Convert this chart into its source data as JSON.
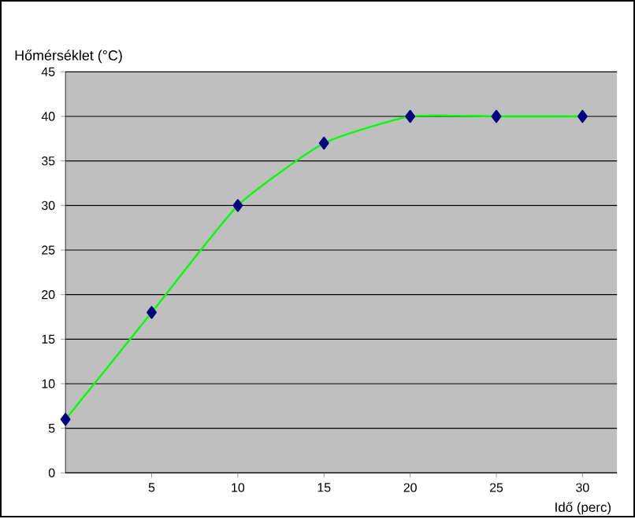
{
  "chart_data": {
    "type": "line",
    "xlabel": "Idő (perc)",
    "ylabel": "Hőmérséklet (°C)",
    "x": [
      0,
      5,
      10,
      15,
      20,
      25,
      30
    ],
    "series": [
      {
        "color": "#00ff00",
        "values": [
          6,
          18,
          30,
          37,
          40,
          40,
          40
        ]
      }
    ],
    "marker": "diamond",
    "line_style": "solid",
    "xlim": [
      0,
      32
    ],
    "xticks": [
      5,
      10,
      15,
      20,
      25,
      30
    ],
    "ylim": [
      0,
      45
    ],
    "yticks": [
      0,
      5,
      10,
      15,
      20,
      25,
      30,
      35,
      40,
      45
    ],
    "grid": "y"
  }
}
